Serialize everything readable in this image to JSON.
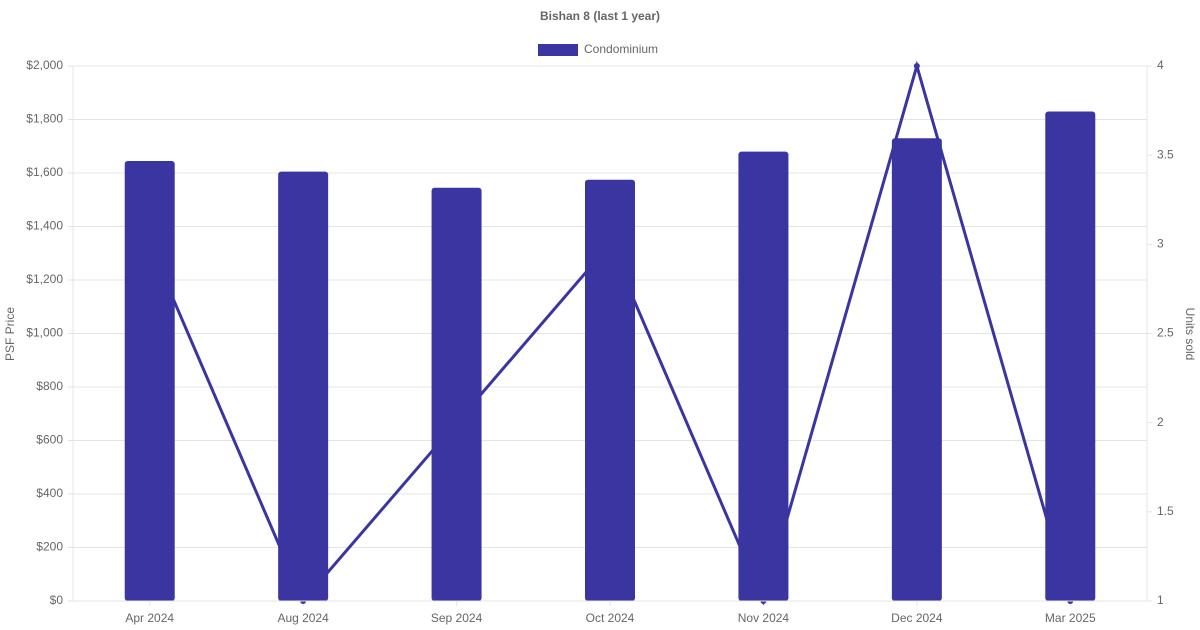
{
  "chart_data": {
    "type": "bar-line",
    "title": "Bishan 8 (last 1 year)",
    "categories": [
      "Apr 2024",
      "Aug 2024",
      "Sep 2024",
      "Oct 2024",
      "Nov 2024",
      "Dec 2024",
      "Mar 2025"
    ],
    "series": [
      {
        "name": "Condominium",
        "type": "bar",
        "color": "#3a35a1",
        "values": [
          1645,
          1605,
          1545,
          1575,
          1680,
          1730,
          1830
        ]
      },
      {
        "type": "line",
        "axis": "y2",
        "color": "#3a35a1",
        "values": [
          3,
          1,
          2,
          3,
          1,
          4,
          1
        ]
      }
    ],
    "y_label": "PSF Price",
    "y2_label": "Units sold",
    "ylim": [
      0,
      2000
    ],
    "yticks": [
      {
        "value": 0,
        "label": "$0"
      },
      {
        "value": 200,
        "label": "$200"
      },
      {
        "value": 400,
        "label": "$400"
      },
      {
        "value": 600,
        "label": "$600"
      },
      {
        "value": 800,
        "label": "$800"
      },
      {
        "value": 1000,
        "label": "$1,000"
      },
      {
        "value": 1200,
        "label": "$1,200"
      },
      {
        "value": 1400,
        "label": "$1,400"
      },
      {
        "value": 1600,
        "label": "$1,600"
      },
      {
        "value": 1800,
        "label": "$1,800"
      },
      {
        "value": 2000,
        "label": "$2,000"
      }
    ],
    "y2lim": [
      1,
      4
    ],
    "y2ticks": [
      1,
      1.5,
      2,
      2.5,
      3,
      3.5,
      4
    ],
    "grid": true,
    "legend": "top"
  }
}
